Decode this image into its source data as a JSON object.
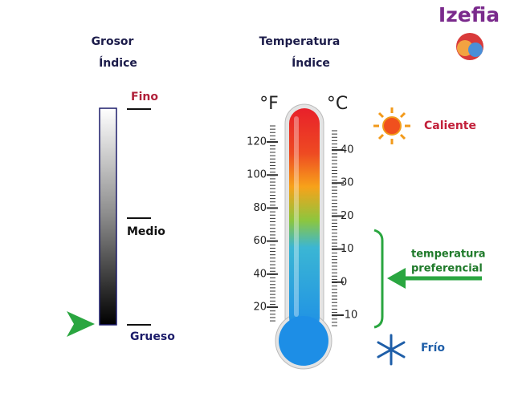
{
  "brand": "Izefia",
  "thickness": {
    "title": "Grosor",
    "subtitle": "Índice",
    "levels": [
      "Fino",
      "Medio",
      "Grueso"
    ]
  },
  "temperature": {
    "title": "Temperatura",
    "subtitle": "Índice",
    "fahrenheit": {
      "unit": "°F",
      "ticks": [
        20,
        40,
        60,
        80,
        100,
        120
      ]
    },
    "celsius": {
      "unit": "°C",
      "ticks": [
        -10,
        0,
        10,
        20,
        30,
        40
      ]
    },
    "hot": "Caliente",
    "preferred": [
      "temperatura",
      "preferencial"
    ],
    "cold": "Frío"
  }
}
